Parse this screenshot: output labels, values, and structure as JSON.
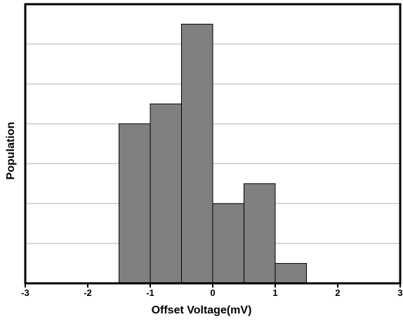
{
  "chart_data": {
    "type": "bar",
    "title": "",
    "xlabel": "Offset Voltage(mV)",
    "ylabel": "Population",
    "xlim": [
      -3,
      3
    ],
    "ylim": [
      0,
      7
    ],
    "x_ticks": [
      "-3",
      "-2",
      "-1",
      "0",
      "1",
      "2",
      "3"
    ],
    "grid": "horizontal",
    "bins": [
      {
        "x0": -1.5,
        "x1": -1.0,
        "value": 4.0
      },
      {
        "x0": -1.0,
        "x1": -0.5,
        "value": 4.5
      },
      {
        "x0": -0.5,
        "x1": 0.0,
        "value": 6.5
      },
      {
        "x0": 0.0,
        "x1": 0.5,
        "value": 2.0
      },
      {
        "x0": 0.5,
        "x1": 1.0,
        "value": 2.5
      },
      {
        "x0": 1.0,
        "x1": 1.5,
        "value": 0.5
      }
    ],
    "bar_color": "#808080",
    "bar_edge_color": "#000000",
    "grid_color": "#b0b0b0"
  }
}
